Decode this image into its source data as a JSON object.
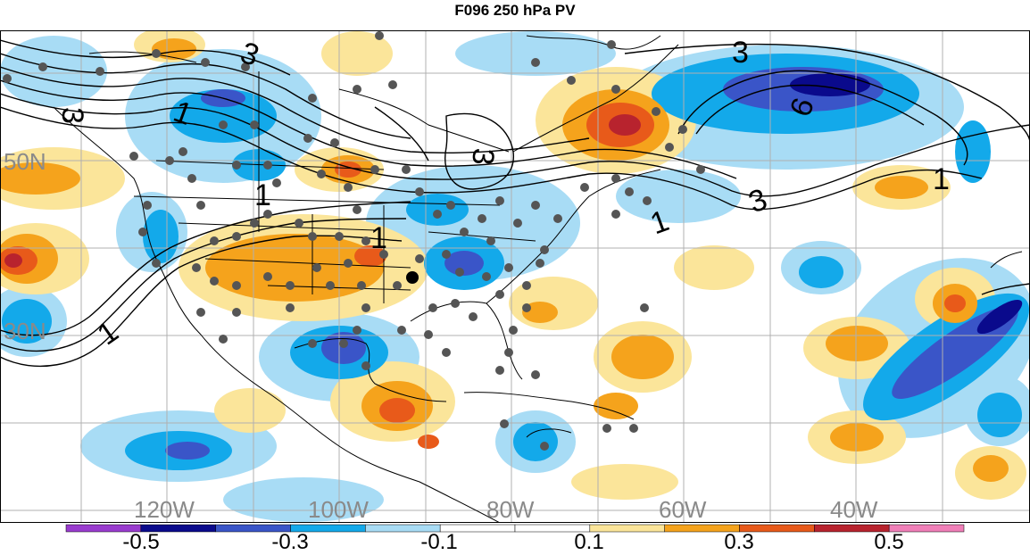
{
  "title": "F096 250 hPa PV",
  "lat_labels": [
    "50N",
    "30N"
  ],
  "lon_labels": [
    "120W",
    "100W",
    "80W",
    "60W",
    "40W"
  ],
  "contour_labels": [
    "1",
    "1",
    "1",
    "1",
    "1",
    "1",
    "3",
    "3",
    "3",
    "3",
    "6",
    "3"
  ],
  "colorbar": {
    "colors": [
      "#9a3ccf",
      "#0a0a8c",
      "#3a55c8",
      "#13a9ea",
      "#a8dcf5",
      "#ffffff",
      "#ffffff",
      "#fbe59a",
      "#f5a31c",
      "#e85a1a",
      "#b8232e",
      "#f07fb8"
    ],
    "labels": [
      "-0.5",
      "-0.3",
      "-0.1",
      "0.1",
      "0.3",
      "0.5"
    ]
  },
  "colors": {
    "deep_blue": "#0a0a8c",
    "blue": "#3a55c8",
    "cyan": "#13a9ea",
    "light_blue": "#a8dcf5",
    "light_yellow": "#fbe59a",
    "orange": "#f5a31c",
    "red_orange": "#e85a1a",
    "dark_red": "#b8232e",
    "station_dot": "#555555",
    "contour": "#000000",
    "label_gray": "#8a8a8a"
  }
}
